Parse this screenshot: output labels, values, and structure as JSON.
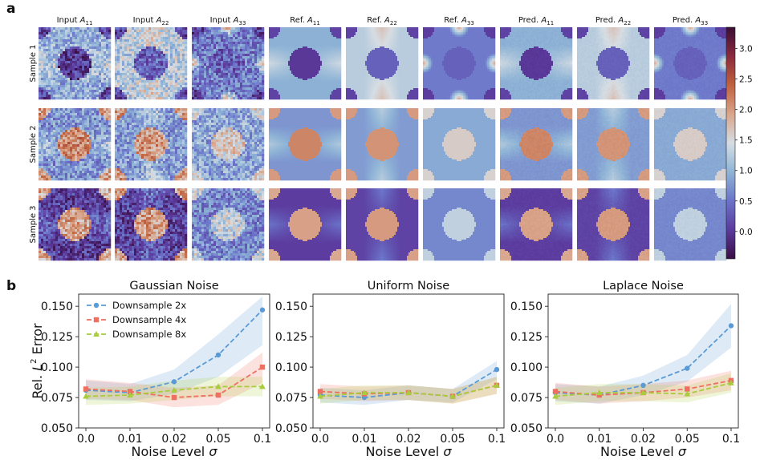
{
  "panel_labels": {
    "a": "a",
    "b": "b"
  },
  "part_a": {
    "column_titles": [
      {
        "pre": "Input ",
        "sym": "A",
        "sub": "11"
      },
      {
        "pre": "Input ",
        "sym": "A",
        "sub": "22"
      },
      {
        "pre": "Input ",
        "sym": "A",
        "sub": "33"
      },
      {
        "pre": "Ref. ",
        "sym": "A",
        "sub": "11"
      },
      {
        "pre": "Ref. ",
        "sym": "A",
        "sub": "22"
      },
      {
        "pre": "Ref. ",
        "sym": "A",
        "sub": "33"
      },
      {
        "pre": "Pred. ",
        "sym": "A",
        "sub": "11"
      },
      {
        "pre": "Pred. ",
        "sym": "A",
        "sub": "22"
      },
      {
        "pre": "Pred. ",
        "sym": "A",
        "sub": "33"
      }
    ],
    "row_labels": [
      "Sample 1",
      "Sample 2",
      "Sample 3"
    ],
    "colorbar_ticks": [
      "3.0",
      "2.5",
      "2.0",
      "1.5",
      "1.0",
      "0.5",
      "0.0"
    ],
    "colorbar_range": [
      -0.45,
      3.35
    ],
    "colormap": [
      "#3a0e44",
      "#5b3a9d",
      "#6b73c9",
      "#8fb4d6",
      "#d6dde3",
      "#d9a58b",
      "#c0623e",
      "#8a2a3d",
      "#3a0e35"
    ],
    "fields": {
      "sample1": {
        "centers": [
          0.0,
          0.35,
          0.35
        ],
        "matrix": [
          0.95,
          1.25,
          0.55
        ],
        "corners": [
          0.1,
          0.1,
          0.05
        ],
        "blobs": [
          0.0,
          0.0,
          1.95
        ]
      },
      "sample2": {
        "centers": [
          2.15,
          2.05,
          1.6
        ],
        "matrix": [
          0.75,
          0.8,
          0.9
        ],
        "corners": [
          2.0,
          2.0,
          1.55
        ],
        "blobs": [
          0.0,
          0.0,
          0.0
        ]
      },
      "sample3": {
        "centers": [
          1.95,
          2.0,
          1.3
        ],
        "matrix": [
          0.05,
          0.1,
          0.65
        ],
        "corners": [
          1.9,
          1.95,
          1.3
        ],
        "blobs": [
          0.0,
          0.0,
          0.0
        ]
      }
    }
  },
  "chart_data": [
    {
      "type": "line",
      "title": "Gaussian Noise",
      "x": [
        "0.0",
        "0.01",
        "0.02",
        "0.05",
        "0.1"
      ],
      "xlabel": {
        "text": "Noise Level ",
        "sym": "σ"
      },
      "ylabel": {
        "text": "Rel. ",
        "sym": "L",
        "sup": "2",
        "rest": " Error"
      },
      "ylim": [
        0.05,
        0.16
      ],
      "yticks": [
        "0.050",
        "0.075",
        "0.100",
        "0.125",
        "0.150"
      ],
      "legend_position": "top-left",
      "series": [
        {
          "name": "Downsample 2x",
          "color": "#5b9bd5",
          "marker": "circle",
          "values": [
            0.081,
            0.079,
            0.088,
            0.11,
            0.147
          ],
          "band_lower": [
            0.073,
            0.072,
            0.078,
            0.092,
            0.118
          ],
          "band_upper": [
            0.089,
            0.086,
            0.098,
            0.127,
            0.158
          ]
        },
        {
          "name": "Downsample 4x",
          "color": "#ef6f61",
          "marker": "square",
          "values": [
            0.082,
            0.08,
            0.075,
            0.077,
            0.1
          ],
          "band_lower": [
            0.074,
            0.073,
            0.067,
            0.069,
            0.087
          ],
          "band_upper": [
            0.09,
            0.087,
            0.083,
            0.085,
            0.112
          ]
        },
        {
          "name": "Downsample 8x",
          "color": "#a8cc3c",
          "marker": "triangle",
          "values": [
            0.076,
            0.077,
            0.081,
            0.084,
            0.084
          ],
          "band_lower": [
            0.069,
            0.07,
            0.073,
            0.076,
            0.076
          ],
          "band_upper": [
            0.083,
            0.084,
            0.089,
            0.092,
            0.092
          ]
        }
      ]
    },
    {
      "type": "line",
      "title": "Uniform Noise",
      "x": [
        "0.0",
        "0.01",
        "0.02",
        "0.05",
        "0.1"
      ],
      "xlabel": {
        "text": "Noise Level ",
        "sym": "σ"
      },
      "ylim": [
        0.05,
        0.16
      ],
      "yticks": [
        "0.050",
        "0.075",
        "0.100",
        "0.125",
        "0.150"
      ],
      "series": [
        {
          "name": "Downsample 2x",
          "color": "#5b9bd5",
          "marker": "circle",
          "values": [
            0.077,
            0.075,
            0.079,
            0.076,
            0.098
          ],
          "band_lower": [
            0.071,
            0.069,
            0.073,
            0.071,
            0.09
          ],
          "band_upper": [
            0.083,
            0.081,
            0.085,
            0.082,
            0.105
          ]
        },
        {
          "name": "Downsample 4x",
          "color": "#ef6f61",
          "marker": "square",
          "values": [
            0.08,
            0.078,
            0.079,
            0.076,
            0.085
          ],
          "band_lower": [
            0.074,
            0.072,
            0.073,
            0.07,
            0.078
          ],
          "band_upper": [
            0.086,
            0.084,
            0.085,
            0.082,
            0.092
          ]
        },
        {
          "name": "Downsample 8x",
          "color": "#a8cc3c",
          "marker": "triangle",
          "values": [
            0.076,
            0.079,
            0.079,
            0.076,
            0.085
          ],
          "band_lower": [
            0.07,
            0.073,
            0.073,
            0.07,
            0.078
          ],
          "band_upper": [
            0.082,
            0.085,
            0.085,
            0.082,
            0.092
          ]
        }
      ]
    },
    {
      "type": "line",
      "title": "Laplace Noise",
      "x": [
        "0.0",
        "0.01",
        "0.02",
        "0.05",
        "0.1"
      ],
      "xlabel": {
        "text": "Noise Level ",
        "sym": "σ"
      },
      "ylim": [
        0.05,
        0.16
      ],
      "yticks": [
        "0.050",
        "0.075",
        "0.100",
        "0.125",
        "0.150"
      ],
      "series": [
        {
          "name": "Downsample 2x",
          "color": "#5b9bd5",
          "marker": "circle",
          "values": [
            0.079,
            0.077,
            0.085,
            0.099,
            0.134
          ],
          "band_lower": [
            0.072,
            0.07,
            0.077,
            0.088,
            0.116
          ],
          "band_upper": [
            0.086,
            0.084,
            0.093,
            0.11,
            0.152
          ]
        },
        {
          "name": "Downsample 4x",
          "color": "#ef6f61",
          "marker": "square",
          "values": [
            0.08,
            0.077,
            0.079,
            0.082,
            0.089
          ],
          "band_lower": [
            0.073,
            0.07,
            0.072,
            0.075,
            0.081
          ],
          "band_upper": [
            0.087,
            0.084,
            0.086,
            0.089,
            0.097
          ]
        },
        {
          "name": "Downsample 8x",
          "color": "#a8cc3c",
          "marker": "triangle",
          "values": [
            0.076,
            0.079,
            0.079,
            0.078,
            0.087
          ],
          "band_lower": [
            0.069,
            0.072,
            0.072,
            0.071,
            0.079
          ],
          "band_upper": [
            0.083,
            0.086,
            0.086,
            0.085,
            0.095
          ]
        }
      ]
    }
  ]
}
